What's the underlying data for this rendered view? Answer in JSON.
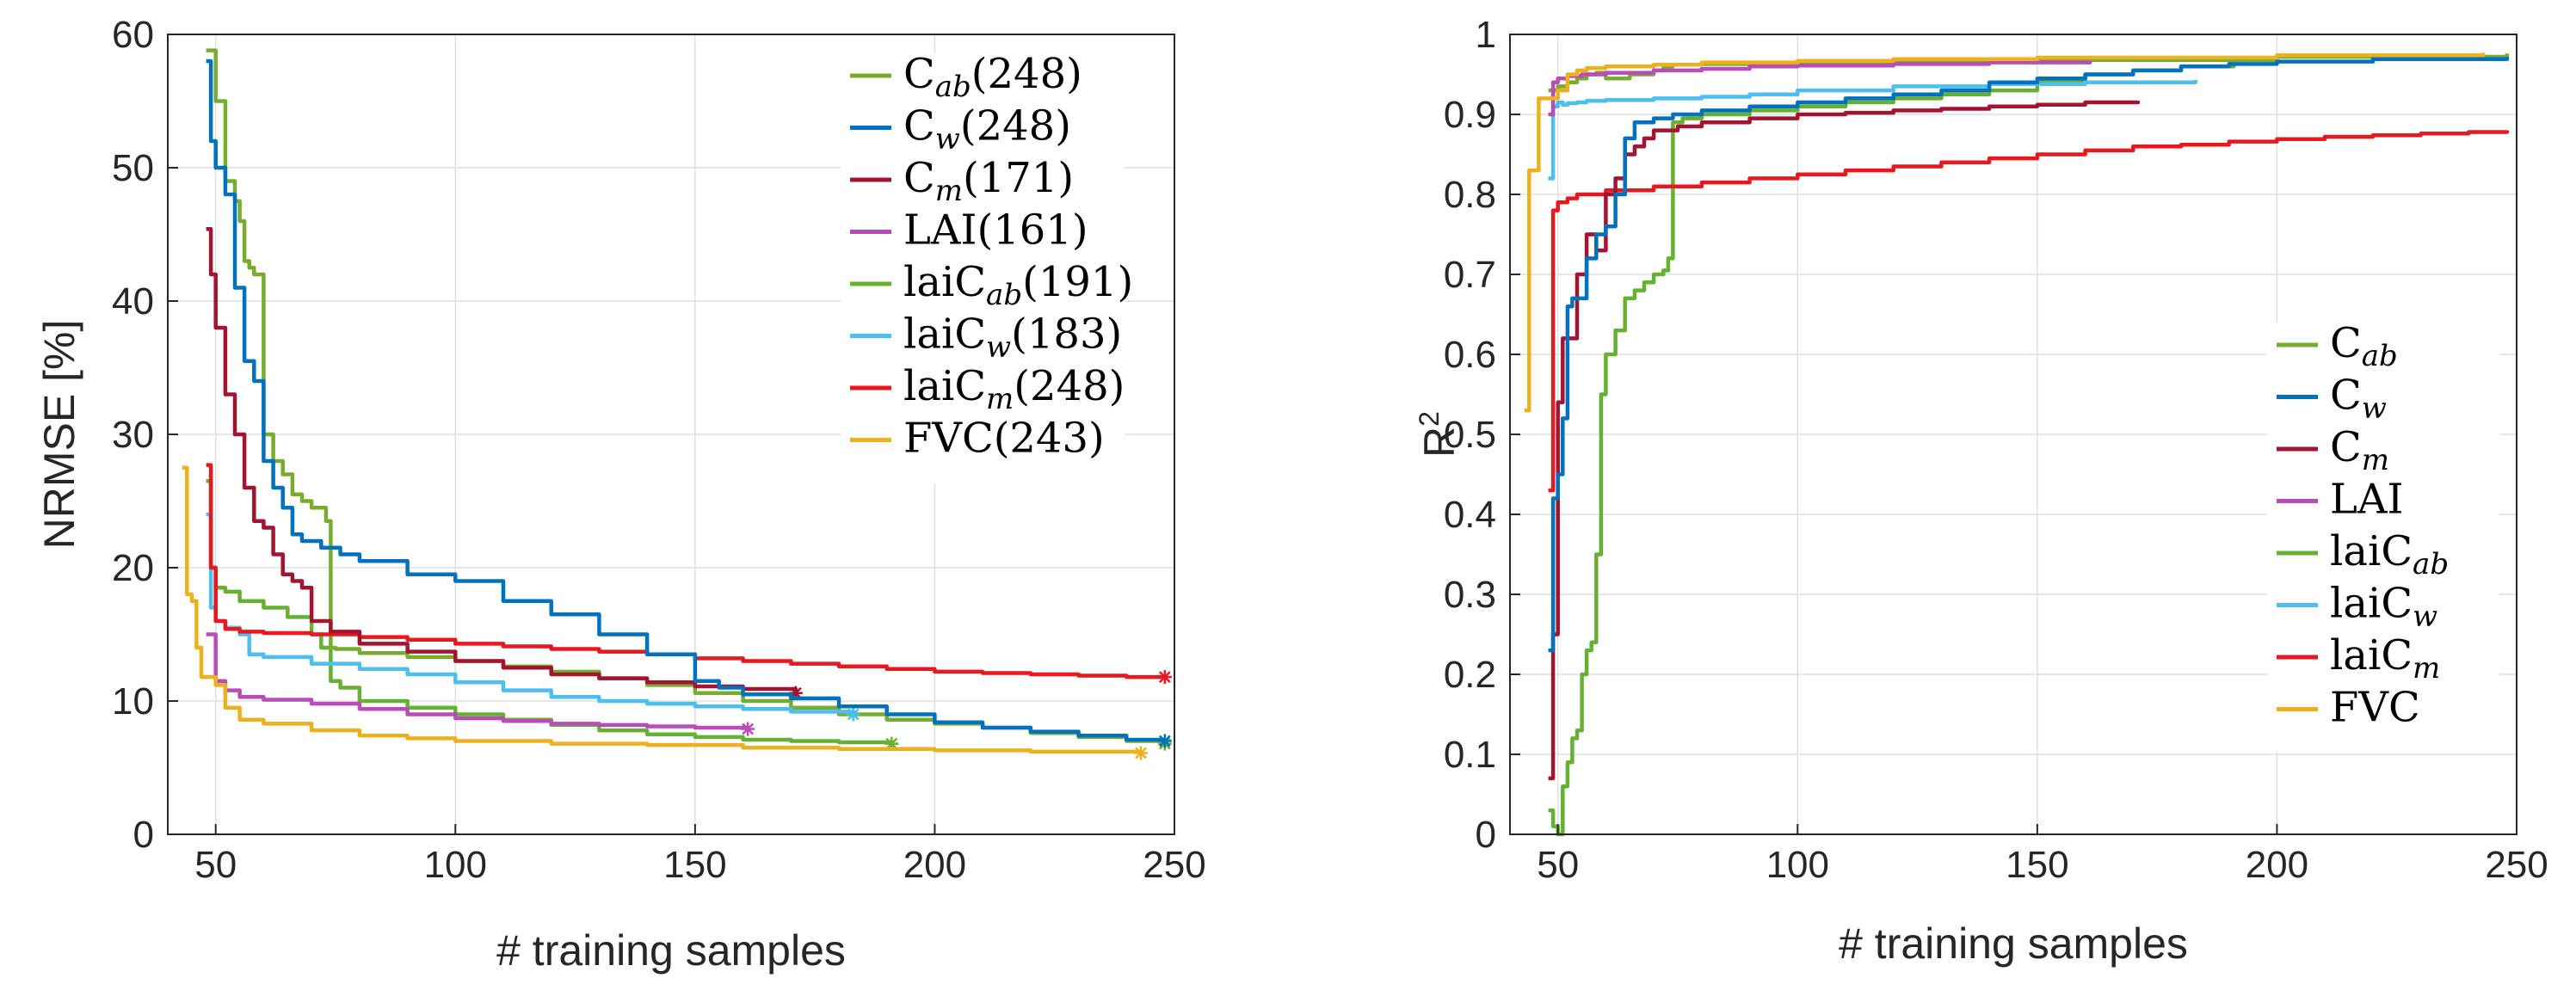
{
  "colors": {
    "Cab": "#77AC30",
    "Cw": "#0072BD",
    "Cm": "#A2142F",
    "LAI": "#B94DB8",
    "laiCab": "#66B033",
    "laiCw": "#4DBEEE",
    "laiCm": "#E8191E",
    "FVC": "#EDB120"
  },
  "chart_data": [
    {
      "type": "line",
      "panel": "left",
      "xlabel": "# training samples",
      "ylabel": "NRMSE [%]",
      "xlim": [
        40,
        250
      ],
      "ylim": [
        0,
        60
      ],
      "xticks": [
        "50",
        "100",
        "150",
        "200",
        "250"
      ],
      "yticks": [
        "0",
        "10",
        "20",
        "30",
        "40",
        "50",
        "60"
      ],
      "legend_position": "top-right",
      "series": [
        {
          "key": "Cab",
          "base": "C",
          "sub": "ab",
          "suffix": "(248)",
          "x": [
            48,
            50,
            52,
            54,
            55,
            56,
            57,
            58,
            60,
            62,
            64,
            66,
            68,
            70,
            73,
            74,
            75,
            80,
            90,
            100,
            110,
            120,
            130,
            140,
            150,
            160,
            170,
            180,
            190,
            200,
            210,
            220,
            230,
            240,
            248
          ],
          "y": [
            58.8,
            55,
            49,
            47.5,
            46,
            43,
            42.5,
            42,
            30,
            28,
            27,
            25.5,
            25,
            24.5,
            23.5,
            14,
            13.9,
            13.6,
            13.3,
            13,
            12.6,
            12.2,
            11.7,
            11.2,
            10.6,
            10,
            9.5,
            9,
            8.6,
            8.3,
            8,
            7.6,
            7.3,
            7,
            6.8
          ],
          "end_marker": true
        },
        {
          "key": "Cw",
          "base": "C",
          "sub": "w",
          "suffix": "(248)",
          "x": [
            48,
            49,
            50,
            52,
            54,
            56,
            58,
            60,
            62,
            64,
            66,
            68,
            72,
            76,
            80,
            90,
            100,
            110,
            120,
            130,
            140,
            150,
            155,
            160,
            170,
            180,
            190,
            200,
            210,
            220,
            230,
            240,
            248
          ],
          "y": [
            58,
            52,
            50,
            48,
            41,
            35.5,
            34,
            28,
            26,
            24.5,
            22.5,
            22,
            21.5,
            21,
            20.5,
            19.5,
            19,
            17.5,
            16.5,
            15,
            13.5,
            11.5,
            11,
            10.5,
            10.2,
            9.6,
            9,
            8.4,
            8,
            7.7,
            7.4,
            7.1,
            7
          ],
          "end_marker": true
        },
        {
          "key": "Cm",
          "base": "C",
          "sub": "m",
          "suffix": "(171)",
          "x": [
            48,
            49,
            50,
            52,
            54,
            56,
            58,
            60,
            62,
            64,
            66,
            68,
            70,
            74,
            80,
            90,
            100,
            110,
            120,
            130,
            140,
            150,
            160,
            171
          ],
          "y": [
            45.4,
            42,
            38,
            33,
            30,
            26,
            23.5,
            23,
            21,
            19.5,
            19,
            18.5,
            16,
            15.2,
            14.3,
            13.7,
            13,
            12.5,
            12,
            11.7,
            11.4,
            11.1,
            10.9,
            10.6
          ],
          "end_marker": true
        },
        {
          "key": "LAI",
          "base": "LAI",
          "sub": "",
          "suffix": "(161)",
          "x": [
            48,
            50,
            52,
            55,
            60,
            70,
            80,
            90,
            100,
            110,
            120,
            130,
            140,
            150,
            161
          ],
          "y": [
            15,
            11.5,
            10.8,
            10.3,
            10.1,
            9.8,
            9.4,
            9,
            8.7,
            8.5,
            8.3,
            8.2,
            8.1,
            8,
            7.9
          ],
          "end_marker": true
        },
        {
          "key": "laiCab",
          "base": "laiC",
          "sub": "ab",
          "suffix": "(191)",
          "x": [
            48,
            49,
            50,
            52,
            55,
            60,
            65,
            70,
            72,
            74,
            76,
            80,
            90,
            100,
            110,
            120,
            130,
            140,
            150,
            160,
            170,
            180,
            191
          ],
          "y": [
            26.5,
            20,
            18.5,
            18.2,
            17.5,
            17,
            16.3,
            15,
            14,
            11.5,
            11,
            10,
            9.5,
            9,
            8.6,
            8.2,
            7.8,
            7.5,
            7.3,
            7.1,
            7,
            6.9,
            6.8
          ],
          "end_marker": true
        },
        {
          "key": "laiCw",
          "base": "laiC",
          "sub": "w",
          "suffix": "(183)",
          "x": [
            48,
            49,
            50,
            52,
            55,
            57,
            60,
            70,
            80,
            90,
            100,
            110,
            120,
            130,
            140,
            150,
            160,
            170,
            183
          ],
          "y": [
            24,
            17,
            16,
            15.5,
            15,
            13.5,
            13.3,
            12.8,
            12.4,
            12,
            11.4,
            10.8,
            10.3,
            10,
            9.8,
            9.6,
            9.4,
            9.2,
            9
          ],
          "end_marker": true
        },
        {
          "key": "laiCm",
          "base": "laiC",
          "sub": "m",
          "suffix": "(248)",
          "x": [
            48,
            49,
            50,
            52,
            55,
            60,
            70,
            80,
            90,
            100,
            110,
            120,
            130,
            140,
            150,
            160,
            170,
            180,
            190,
            200,
            210,
            220,
            230,
            240,
            248
          ],
          "y": [
            27.7,
            20,
            16,
            15.4,
            15.2,
            15.1,
            15,
            14.8,
            14.6,
            14.3,
            14.1,
            13.9,
            13.7,
            13.5,
            13.2,
            13,
            12.8,
            12.6,
            12.4,
            12.2,
            12.1,
            12,
            11.9,
            11.8,
            11.8
          ],
          "end_marker": true
        },
        {
          "key": "FVC",
          "base": "FVC",
          "sub": "",
          "suffix": "(243)",
          "x": [
            43,
            44,
            45,
            46,
            47,
            50,
            52,
            55,
            60,
            70,
            80,
            90,
            100,
            120,
            140,
            160,
            180,
            200,
            220,
            243
          ],
          "y": [
            27.5,
            18,
            17.5,
            14,
            11.8,
            11.2,
            9.5,
            8.6,
            8.3,
            7.8,
            7.4,
            7.2,
            7,
            6.8,
            6.7,
            6.5,
            6.4,
            6.3,
            6.2,
            6.1
          ],
          "end_marker": true
        }
      ]
    },
    {
      "type": "line",
      "panel": "right",
      "xlabel": "# training samples",
      "ylabel": "R²",
      "ylabel_base": "R",
      "ylabel_sup": "2",
      "xlim": [
        40,
        250
      ],
      "ylim": [
        0,
        1
      ],
      "xticks": [
        "50",
        "100",
        "150",
        "200",
        "250"
      ],
      "yticks": [
        "0",
        "0.1",
        "0.2",
        "0.3",
        "0.4",
        "0.5",
        "0.6",
        "0.7",
        "0.8",
        "0.9",
        "1"
      ],
      "legend_position": "bottom-right",
      "series": [
        {
          "key": "Cab",
          "base": "C",
          "sub": "ab",
          "x": [
            48,
            50,
            52,
            54,
            56,
            58,
            60,
            65,
            70,
            72,
            73,
            74,
            80,
            100,
            120,
            150,
            200,
            248
          ],
          "y": [
            0.93,
            0.935,
            0.94,
            0.945,
            0.95,
            0.952,
            0.945,
            0.95,
            0.955,
            0.958,
            0.96,
            0.962,
            0.963,
            0.965,
            0.966,
            0.968,
            0.972,
            0.976
          ]
        },
        {
          "key": "Cw",
          "base": "C",
          "sub": "w",
          "x": [
            48,
            49,
            50,
            51,
            52,
            53,
            54,
            56,
            58,
            60,
            62,
            64,
            66,
            68,
            70,
            72,
            74,
            80,
            90,
            100,
            110,
            120,
            130,
            140,
            150,
            160,
            170,
            180,
            190,
            200,
            220,
            248
          ],
          "y": [
            0.23,
            0.42,
            0.45,
            0.52,
            0.66,
            0.67,
            0.67,
            0.72,
            0.75,
            0.76,
            0.8,
            0.87,
            0.89,
            0.89,
            0.895,
            0.895,
            0.9,
            0.905,
            0.91,
            0.915,
            0.92,
            0.925,
            0.93,
            0.94,
            0.945,
            0.95,
            0.955,
            0.96,
            0.963,
            0.966,
            0.969,
            0.972
          ]
        },
        {
          "key": "Cm",
          "base": "C",
          "sub": "m",
          "x": [
            48,
            49,
            50,
            51,
            52,
            54,
            56,
            58,
            60,
            62,
            64,
            66,
            68,
            70,
            75,
            80,
            90,
            100,
            110,
            120,
            130,
            140,
            150,
            160,
            171
          ],
          "y": [
            0.07,
            0.25,
            0.54,
            0.62,
            0.62,
            0.7,
            0.75,
            0.73,
            0.8,
            0.82,
            0.85,
            0.86,
            0.87,
            0.88,
            0.885,
            0.89,
            0.895,
            0.9,
            0.902,
            0.905,
            0.907,
            0.91,
            0.912,
            0.915,
            0.917
          ]
        },
        {
          "key": "LAI",
          "base": "LAI",
          "sub": "",
          "x": [
            48,
            49,
            50,
            52,
            55,
            60,
            70,
            80,
            90,
            100,
            120,
            140,
            161
          ],
          "y": [
            0.9,
            0.94,
            0.945,
            0.948,
            0.95,
            0.952,
            0.955,
            0.957,
            0.96,
            0.961,
            0.963,
            0.965,
            0.967
          ]
        },
        {
          "key": "laiCab",
          "base": "laiC",
          "sub": "ab",
          "x": [
            48,
            49,
            50,
            51,
            52,
            53,
            54,
            55,
            56,
            57,
            58,
            59,
            60,
            62,
            64,
            66,
            68,
            70,
            72,
            73,
            74,
            76,
            80,
            90,
            100,
            110,
            120,
            130,
            140,
            150,
            160,
            170,
            180,
            191
          ],
          "y": [
            0.03,
            0.01,
            0.0,
            0.06,
            0.09,
            0.12,
            0.13,
            0.2,
            0.23,
            0.24,
            0.35,
            0.55,
            0.6,
            0.63,
            0.67,
            0.68,
            0.69,
            0.7,
            0.705,
            0.72,
            0.89,
            0.895,
            0.9,
            0.905,
            0.91,
            0.915,
            0.92,
            0.925,
            0.93,
            0.94,
            0.95,
            0.955,
            0.96,
            0.965
          ]
        },
        {
          "key": "laiCw",
          "base": "laiC",
          "sub": "w",
          "x": [
            48,
            49,
            50,
            51,
            52,
            54,
            56,
            60,
            70,
            80,
            90,
            100,
            120,
            140,
            160,
            183
          ],
          "y": [
            0.82,
            0.91,
            0.915,
            0.912,
            0.914,
            0.915,
            0.917,
            0.918,
            0.92,
            0.922,
            0.925,
            0.93,
            0.935,
            0.938,
            0.94,
            0.943
          ]
        },
        {
          "key": "laiCm",
          "base": "laiC",
          "sub": "m",
          "x": [
            48,
            49,
            50,
            51,
            52,
            54,
            56,
            60,
            70,
            80,
            90,
            100,
            110,
            120,
            130,
            140,
            150,
            160,
            170,
            180,
            190,
            200,
            210,
            220,
            230,
            240,
            248
          ],
          "y": [
            0.43,
            0.78,
            0.79,
            0.79,
            0.795,
            0.8,
            0.8,
            0.805,
            0.81,
            0.815,
            0.82,
            0.825,
            0.83,
            0.835,
            0.84,
            0.845,
            0.85,
            0.855,
            0.86,
            0.862,
            0.866,
            0.869,
            0.872,
            0.874,
            0.876,
            0.878,
            0.88
          ]
        },
        {
          "key": "FVC",
          "base": "FVC",
          "sub": "",
          "x": [
            43,
            44,
            45,
            46,
            47,
            48,
            50,
            52,
            54,
            56,
            60,
            70,
            80,
            100,
            120,
            150,
            200,
            243
          ],
          "y": [
            0.53,
            0.83,
            0.83,
            0.92,
            0.92,
            0.92,
            0.93,
            0.95,
            0.955,
            0.958,
            0.96,
            0.962,
            0.965,
            0.967,
            0.969,
            0.971,
            0.974,
            0.977
          ]
        }
      ]
    }
  ]
}
